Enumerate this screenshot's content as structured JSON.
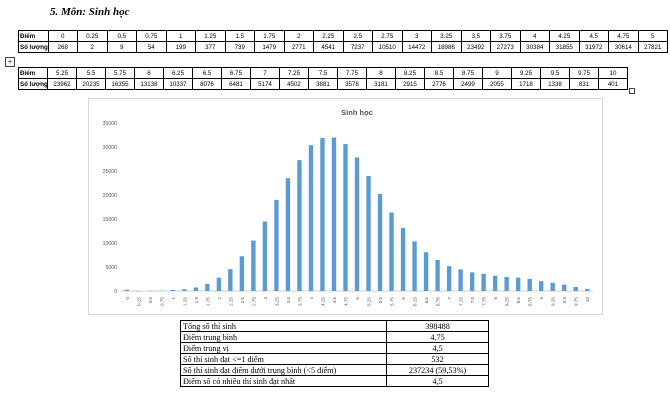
{
  "heading": "5.  Môn: Sinh học",
  "table_top": {
    "row_head_score": "Điểm",
    "row_head_count": "Số lượng",
    "scores": [
      "0",
      "0.25",
      "0.5",
      "0.75",
      "1",
      "1.25",
      "1.5",
      "1.75",
      "2",
      "2.25",
      "2.5",
      "2.75",
      "3",
      "3.25",
      "3.5",
      "3.75",
      "4",
      "4.25",
      "4.5",
      "4.75",
      "5"
    ],
    "counts": [
      "268",
      "2",
      "9",
      "54",
      "199",
      "377",
      "739",
      "1479",
      "2771",
      "4541",
      "7237",
      "10510",
      "14472",
      "18986",
      "23492",
      "27273",
      "30384",
      "31855",
      "31972",
      "30614",
      "27821"
    ]
  },
  "table_bottom": {
    "row_head_score": "Điểm",
    "row_head_count": "Số lượng",
    "scores": [
      "5.25",
      "5.5",
      "5.75",
      "6",
      "6.25",
      "6.5",
      "6.75",
      "7",
      "7.25",
      "7.5",
      "7.75",
      "8",
      "8.25",
      "8.5",
      "8.75",
      "9",
      "9.25",
      "9.5",
      "9.75",
      "10"
    ],
    "counts": [
      "23962",
      "20235",
      "16355",
      "13138",
      "10337",
      "8076",
      "6481",
      "5174",
      "4502",
      "3881",
      "3578",
      "3181",
      "2915",
      "2776",
      "2499",
      "2055",
      "1718",
      "1338",
      "831",
      "401"
    ]
  },
  "chart_data": {
    "type": "bar",
    "title": "Sinh học",
    "categories": [
      "0",
      "0.25",
      "0.5",
      "0.75",
      "1",
      "1.25",
      "1.5",
      "1.75",
      "2",
      "2.25",
      "2.5",
      "2.75",
      "3",
      "3.25",
      "3.5",
      "3.75",
      "4",
      "4.25",
      "4.5",
      "4.75",
      "5",
      "5.25",
      "5.5",
      "5.75",
      "6",
      "6.25",
      "6.5",
      "6.75",
      "7",
      "7.25",
      "7.5",
      "7.75",
      "8",
      "8.25",
      "8.5",
      "8.75",
      "9",
      "9.25",
      "9.5",
      "9.75",
      "10"
    ],
    "values": [
      268,
      2,
      9,
      54,
      199,
      377,
      739,
      1479,
      2771,
      4541,
      7237,
      10510,
      14472,
      18986,
      23492,
      27273,
      30384,
      31855,
      31972,
      30614,
      27821,
      23962,
      20235,
      16355,
      13138,
      10337,
      8076,
      6481,
      5174,
      4502,
      3881,
      3578,
      3181,
      2915,
      2776,
      2499,
      2055,
      1718,
      1338,
      831,
      401
    ],
    "y_ticks": [
      "0",
      "5000",
      "10000",
      "15000",
      "20000",
      "25000",
      "30000",
      "35000"
    ],
    "ylim": [
      0,
      35000
    ],
    "grid": false,
    "bar_color": "#5b9bd5"
  },
  "stats": [
    {
      "label": "Tổng số thí sinh",
      "value": "398488"
    },
    {
      "label": "Điểm trung bình",
      "value": "4,75"
    },
    {
      "label": "Điểm trung vị",
      "value": "4,5"
    },
    {
      "label": "Số thí sinh đạt <=1 điểm",
      "value": "532"
    },
    {
      "label": "Số thí sinh đạt điểm dưới trung bình (<5 điểm)",
      "value": "237234 (59,53%)"
    },
    {
      "label": "Điểm số có nhiều thí sinh đạt nhất",
      "value": "4,5"
    }
  ]
}
